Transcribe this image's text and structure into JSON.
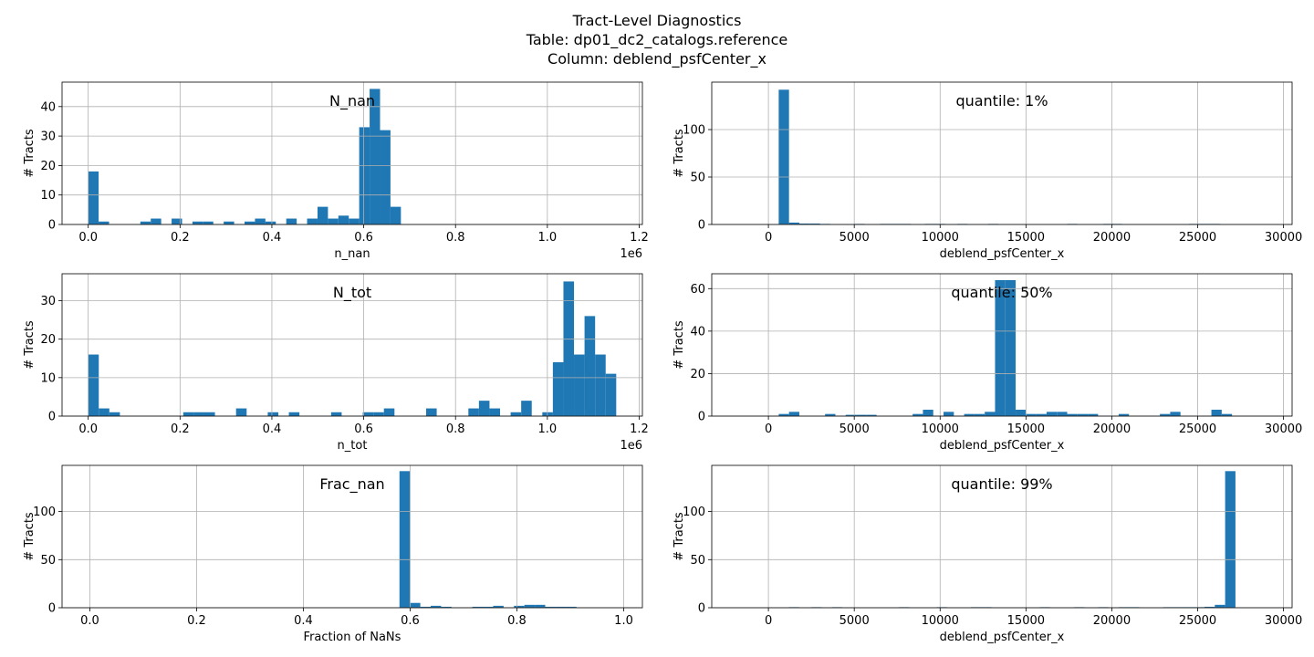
{
  "figure": {
    "title_lines": [
      "Tract-Level Diagnostics",
      "Table:  dp01_dc2_catalogs.reference",
      "Column:  deblend_psfCenter_x"
    ]
  },
  "chart_data": [
    {
      "type": "bar",
      "annotation": "N_nan",
      "xlabel": "n_nan",
      "ylabel": "# Tracts",
      "x_multiplier": "1e6",
      "xlim": [
        -0.057,
        1.207
      ],
      "ylim": [
        0,
        48.3
      ],
      "xticks": [
        0.0,
        0.2,
        0.4,
        0.6,
        0.8,
        1.0,
        1.2
      ],
      "xtick_labels": [
        "0.0",
        "0.2",
        "0.4",
        "0.6",
        "0.8",
        "1.0",
        "1.2"
      ],
      "yticks": [
        0,
        10,
        20,
        30,
        40
      ],
      "bin_width": 0.0227,
      "bins": [
        [
          0.0,
          18
        ],
        [
          0.0227,
          1
        ],
        [
          0.1135,
          1
        ],
        [
          0.1362,
          2
        ],
        [
          0.1816,
          2
        ],
        [
          0.227,
          1
        ],
        [
          0.2497,
          1
        ],
        [
          0.2951,
          1
        ],
        [
          0.3405,
          1
        ],
        [
          0.3632,
          2
        ],
        [
          0.3859,
          1
        ],
        [
          0.4313,
          2
        ],
        [
          0.4767,
          2
        ],
        [
          0.4994,
          6
        ],
        [
          0.5221,
          2
        ],
        [
          0.5448,
          3
        ],
        [
          0.5675,
          2
        ],
        [
          0.5902,
          33
        ],
        [
          0.6129,
          46
        ],
        [
          0.6356,
          32
        ],
        [
          0.6583,
          6
        ]
      ]
    },
    {
      "type": "bar",
      "annotation": "quantile: 1%",
      "xlabel": "deblend_psfCenter_x",
      "ylabel": "# Tracts",
      "xlim": [
        -3300,
        30500
      ],
      "ylim": [
        0,
        150
      ],
      "xticks": [
        0,
        5000,
        10000,
        15000,
        20000,
        25000,
        30000
      ],
      "xtick_labels": [
        "0",
        "5000",
        "10000",
        "15000",
        "20000",
        "25000",
        "30000"
      ],
      "yticks": [
        0,
        50,
        100
      ],
      "bin_width": 600,
      "bins": [
        [
          600,
          142
        ],
        [
          1200,
          2
        ],
        [
          1800,
          1
        ],
        [
          2400,
          1
        ],
        [
          3000,
          0.6
        ],
        [
          5000,
          0.6
        ],
        [
          6500,
          0.6
        ],
        [
          7100,
          0.6
        ],
        [
          7700,
          0.6
        ],
        [
          9100,
          0.6
        ],
        [
          9700,
          0.6
        ],
        [
          11000,
          0.6
        ],
        [
          12800,
          0.6
        ],
        [
          17400,
          0.6
        ],
        [
          19500,
          0.6
        ],
        [
          20000,
          0.6
        ],
        [
          24500,
          0.6
        ],
        [
          25100,
          0.6
        ],
        [
          25700,
          0.6
        ]
      ]
    },
    {
      "type": "bar",
      "annotation": "N_tot",
      "xlabel": "n_tot",
      "ylabel": "# Tracts",
      "x_multiplier": "1e6",
      "xlim": [
        -0.057,
        1.207
      ],
      "ylim": [
        0,
        37
      ],
      "xticks": [
        0.0,
        0.2,
        0.4,
        0.6,
        0.8,
        1.0,
        1.2
      ],
      "xtick_labels": [
        "0.0",
        "0.2",
        "0.4",
        "0.6",
        "0.8",
        "1.0",
        "1.2"
      ],
      "yticks": [
        0,
        10,
        20,
        30
      ],
      "bin_width": 0.023,
      "bins": [
        [
          0.0,
          16
        ],
        [
          0.023,
          2
        ],
        [
          0.046,
          1
        ],
        [
          0.207,
          1
        ],
        [
          0.23,
          1
        ],
        [
          0.253,
          1
        ],
        [
          0.322,
          2
        ],
        [
          0.391,
          1
        ],
        [
          0.437,
          1
        ],
        [
          0.529,
          1
        ],
        [
          0.598,
          1
        ],
        [
          0.621,
          1
        ],
        [
          0.644,
          2
        ],
        [
          0.736,
          2
        ],
        [
          0.828,
          2
        ],
        [
          0.851,
          4
        ],
        [
          0.874,
          2
        ],
        [
          0.92,
          1
        ],
        [
          0.943,
          4
        ],
        [
          0.989,
          1
        ],
        [
          1.012,
          14
        ],
        [
          1.035,
          35
        ],
        [
          1.058,
          16
        ],
        [
          1.081,
          26
        ],
        [
          1.104,
          16
        ],
        [
          1.127,
          11
        ]
      ]
    },
    {
      "type": "bar",
      "annotation": "quantile: 50%",
      "xlabel": "deblend_psfCenter_x",
      "ylabel": "# Tracts",
      "xlim": [
        -3300,
        30500
      ],
      "ylim": [
        0,
        67
      ],
      "xticks": [
        0,
        5000,
        10000,
        15000,
        20000,
        25000,
        30000
      ],
      "xtick_labels": [
        "0",
        "5000",
        "10000",
        "15000",
        "20000",
        "25000",
        "30000"
      ],
      "yticks": [
        0,
        20,
        40,
        60
      ],
      "bin_width": 600,
      "bins": [
        [
          600,
          1
        ],
        [
          1200,
          2
        ],
        [
          3300,
          1
        ],
        [
          4500,
          0.6
        ],
        [
          5100,
          0.6
        ],
        [
          5700,
          0.6
        ],
        [
          8400,
          1
        ],
        [
          9000,
          3
        ],
        [
          10200,
          2
        ],
        [
          11400,
          1
        ],
        [
          12000,
          1
        ],
        [
          12600,
          2
        ],
        [
          13200,
          64
        ],
        [
          13800,
          64
        ],
        [
          14400,
          3
        ],
        [
          15000,
          1
        ],
        [
          15600,
          1
        ],
        [
          16200,
          2
        ],
        [
          16800,
          2
        ],
        [
          17400,
          1
        ],
        [
          18000,
          1
        ],
        [
          18600,
          1
        ],
        [
          20400,
          1
        ],
        [
          22800,
          1
        ],
        [
          23400,
          2
        ],
        [
          25800,
          3
        ],
        [
          26400,
          1
        ]
      ]
    },
    {
      "type": "bar",
      "annotation": "Frac_nan",
      "xlabel": "Fraction of NaNs",
      "ylabel": "# Tracts",
      "xlim": [
        -0.052,
        1.035
      ],
      "ylim": [
        0,
        148
      ],
      "xticks": [
        0.0,
        0.2,
        0.4,
        0.6,
        0.8,
        1.0
      ],
      "xtick_labels": [
        "0.0",
        "0.2",
        "0.4",
        "0.6",
        "0.8",
        "1.0"
      ],
      "yticks": [
        0,
        50,
        100
      ],
      "bin_width": 0.0195,
      "bins": [
        [
          0.58,
          142
        ],
        [
          0.5995,
          5
        ],
        [
          0.619,
          1
        ],
        [
          0.6385,
          2
        ],
        [
          0.658,
          1
        ],
        [
          0.7165,
          1
        ],
        [
          0.736,
          1
        ],
        [
          0.7555,
          2
        ],
        [
          0.7945,
          2
        ],
        [
          0.814,
          3
        ],
        [
          0.8335,
          3
        ],
        [
          0.853,
          1
        ],
        [
          0.8725,
          1
        ],
        [
          0.892,
          1
        ]
      ]
    },
    {
      "type": "bar",
      "annotation": "quantile: 99%",
      "xlabel": "deblend_psfCenter_x",
      "ylabel": "# Tracts",
      "xlim": [
        -3300,
        30500
      ],
      "ylim": [
        0,
        148
      ],
      "xticks": [
        0,
        5000,
        10000,
        15000,
        20000,
        25000,
        30000
      ],
      "xtick_labels": [
        "0",
        "5000",
        "10000",
        "15000",
        "20000",
        "25000",
        "30000"
      ],
      "yticks": [
        0,
        50,
        100
      ],
      "bin_width": 600,
      "bins": [
        [
          1200,
          0.6
        ],
        [
          2500,
          0.6
        ],
        [
          3700,
          0.6
        ],
        [
          7600,
          0.6
        ],
        [
          9800,
          0.6
        ],
        [
          11800,
          0.6
        ],
        [
          12400,
          0.6
        ],
        [
          15800,
          0.6
        ],
        [
          17800,
          0.6
        ],
        [
          19200,
          0.6
        ],
        [
          20400,
          0.6
        ],
        [
          21000,
          0.6
        ],
        [
          23000,
          0.6
        ],
        [
          23600,
          0.6
        ],
        [
          24200,
          0.6
        ],
        [
          24800,
          0.6
        ],
        [
          25400,
          1
        ],
        [
          26000,
          3
        ],
        [
          26600,
          142
        ]
      ]
    }
  ]
}
